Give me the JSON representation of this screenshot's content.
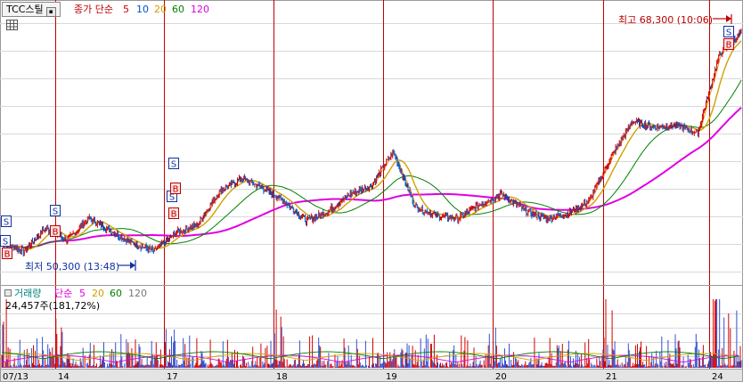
{
  "header": {
    "ticker": "TCC스틸",
    "price_legend": {
      "label": "종가 단순",
      "periods": [
        "5",
        "10",
        "20",
        "60",
        "120"
      ]
    },
    "volume_legend": {
      "label": "거래량",
      "ma_label": "단순",
      "periods": [
        "5",
        "20",
        "60",
        "120"
      ]
    },
    "volume_readout": "24,457주(181,72%)"
  },
  "annotations": {
    "high": "최고 68,300 (10:06)",
    "low": "최저 50,300 (13:48)"
  },
  "x_axis_labels": [
    "07/13",
    "14",
    "17",
    "18",
    "19",
    "20",
    "21",
    "24"
  ],
  "markers": {
    "sell": "S",
    "buy": "B"
  },
  "colors": {
    "price": "#d40000",
    "ma5": "#e8a000",
    "ma10": "#0050c8",
    "ma20": "#d0a000",
    "ma60": "#008000",
    "ma120": "#e000e0",
    "volume": "#3050d0",
    "day_divider": "#c00000",
    "grid": "#d8d8d8"
  },
  "chart_data": {
    "type": "line",
    "title": "",
    "high": 68300,
    "low": 50300,
    "days": [
      "07/13",
      "14",
      "17",
      "18",
      "19",
      "20",
      "21",
      "24"
    ],
    "close_path_keypoints": [
      51000,
      50300,
      52200,
      51200,
      53000,
      52000,
      51000,
      50300,
      51800,
      52500,
      55200,
      56300,
      55500,
      54400,
      52800,
      53600,
      55000,
      55700,
      58500,
      54000,
      53200,
      53000,
      54200,
      55000,
      53700,
      53000,
      53400,
      54400,
      58000,
      61000,
      60500,
      60700,
      60000,
      66500,
      68300
    ]
  }
}
